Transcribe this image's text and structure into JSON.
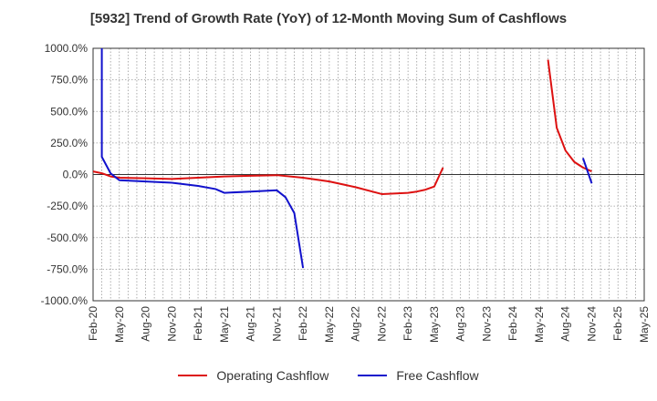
{
  "chart_data": {
    "type": "line",
    "title": "[5932]  Trend of Growth Rate (YoY) of 12-Month Moving Sum of Cashflows",
    "xlabel": "",
    "ylabel": "",
    "ylim": [
      -1000,
      1000
    ],
    "y_ticks": [
      1000,
      750,
      500,
      250,
      0,
      -250,
      -500,
      -750,
      -1000
    ],
    "y_tick_labels": [
      "1000.0%",
      "750.0%",
      "500.0%",
      "250.0%",
      "0.0%",
      "-250.0%",
      "-500.0%",
      "-750.0%",
      "-1000.0%"
    ],
    "x_start": "Feb-20",
    "x_ticks": [
      "Feb-20",
      "May-20",
      "Aug-20",
      "Nov-20",
      "Feb-21",
      "May-21",
      "Aug-21",
      "Nov-21",
      "Feb-22",
      "May-22",
      "Aug-22",
      "Nov-22",
      "Feb-23",
      "May-23",
      "Aug-23",
      "Nov-23",
      "Feb-24",
      "May-24",
      "Aug-24",
      "Nov-24",
      "Feb-25",
      "May-25"
    ],
    "grid": true,
    "legend_position": "bottom",
    "series": [
      {
        "name": "Operating Cashflow",
        "color": "#dd1111",
        "points": [
          [
            "Feb-20",
            25
          ],
          [
            "Mar-20",
            10
          ],
          [
            "Apr-20",
            -15
          ],
          [
            "May-20",
            -25
          ],
          [
            "Aug-20",
            -30
          ],
          [
            "Nov-20",
            -35
          ],
          [
            "Feb-21",
            -25
          ],
          [
            "May-21",
            -15
          ],
          [
            "Aug-21",
            -10
          ],
          [
            "Nov-21",
            -5
          ],
          [
            "Feb-22",
            -25
          ],
          [
            "May-22",
            -55
          ],
          [
            "Aug-22",
            -100
          ],
          [
            "Nov-22",
            -155
          ],
          [
            "Feb-23",
            -145
          ],
          [
            "Mar-23",
            -135
          ],
          [
            "Apr-23",
            -120
          ],
          [
            "May-23",
            -95
          ],
          [
            "Jun-23",
            55
          ]
        ]
      },
      {
        "name": "Operating Cashflow",
        "color": "#dd1111",
        "points": [
          [
            "Jun-24",
            910
          ],
          [
            "Jul-24",
            370
          ],
          [
            "Aug-24",
            190
          ],
          [
            "Sep-24",
            100
          ],
          [
            "Oct-24",
            55
          ],
          [
            "Nov-24",
            25
          ]
        ]
      },
      {
        "name": "Free Cashflow",
        "color": "#1111cc",
        "points": [
          [
            "Mar-20",
            1000
          ],
          [
            "Mar-20",
            140
          ],
          [
            "Apr-20",
            10
          ],
          [
            "May-20",
            -45
          ],
          [
            "Aug-20",
            -55
          ],
          [
            "Nov-20",
            -65
          ],
          [
            "Feb-21",
            -90
          ],
          [
            "Apr-21",
            -115
          ],
          [
            "May-21",
            -145
          ],
          [
            "Aug-21",
            -135
          ],
          [
            "Nov-21",
            -125
          ],
          [
            "Dec-21",
            -180
          ],
          [
            "Jan-22",
            -305
          ],
          [
            "Feb-22",
            -740
          ]
        ]
      },
      {
        "name": "Free Cashflow",
        "color": "#1111cc",
        "points": [
          [
            "Oct-24",
            130
          ],
          [
            "Nov-24",
            -70
          ]
        ]
      }
    ],
    "legend": [
      {
        "name": "Operating Cashflow",
        "color": "#dd1111"
      },
      {
        "name": "Free Cashflow",
        "color": "#1111cc"
      }
    ]
  }
}
